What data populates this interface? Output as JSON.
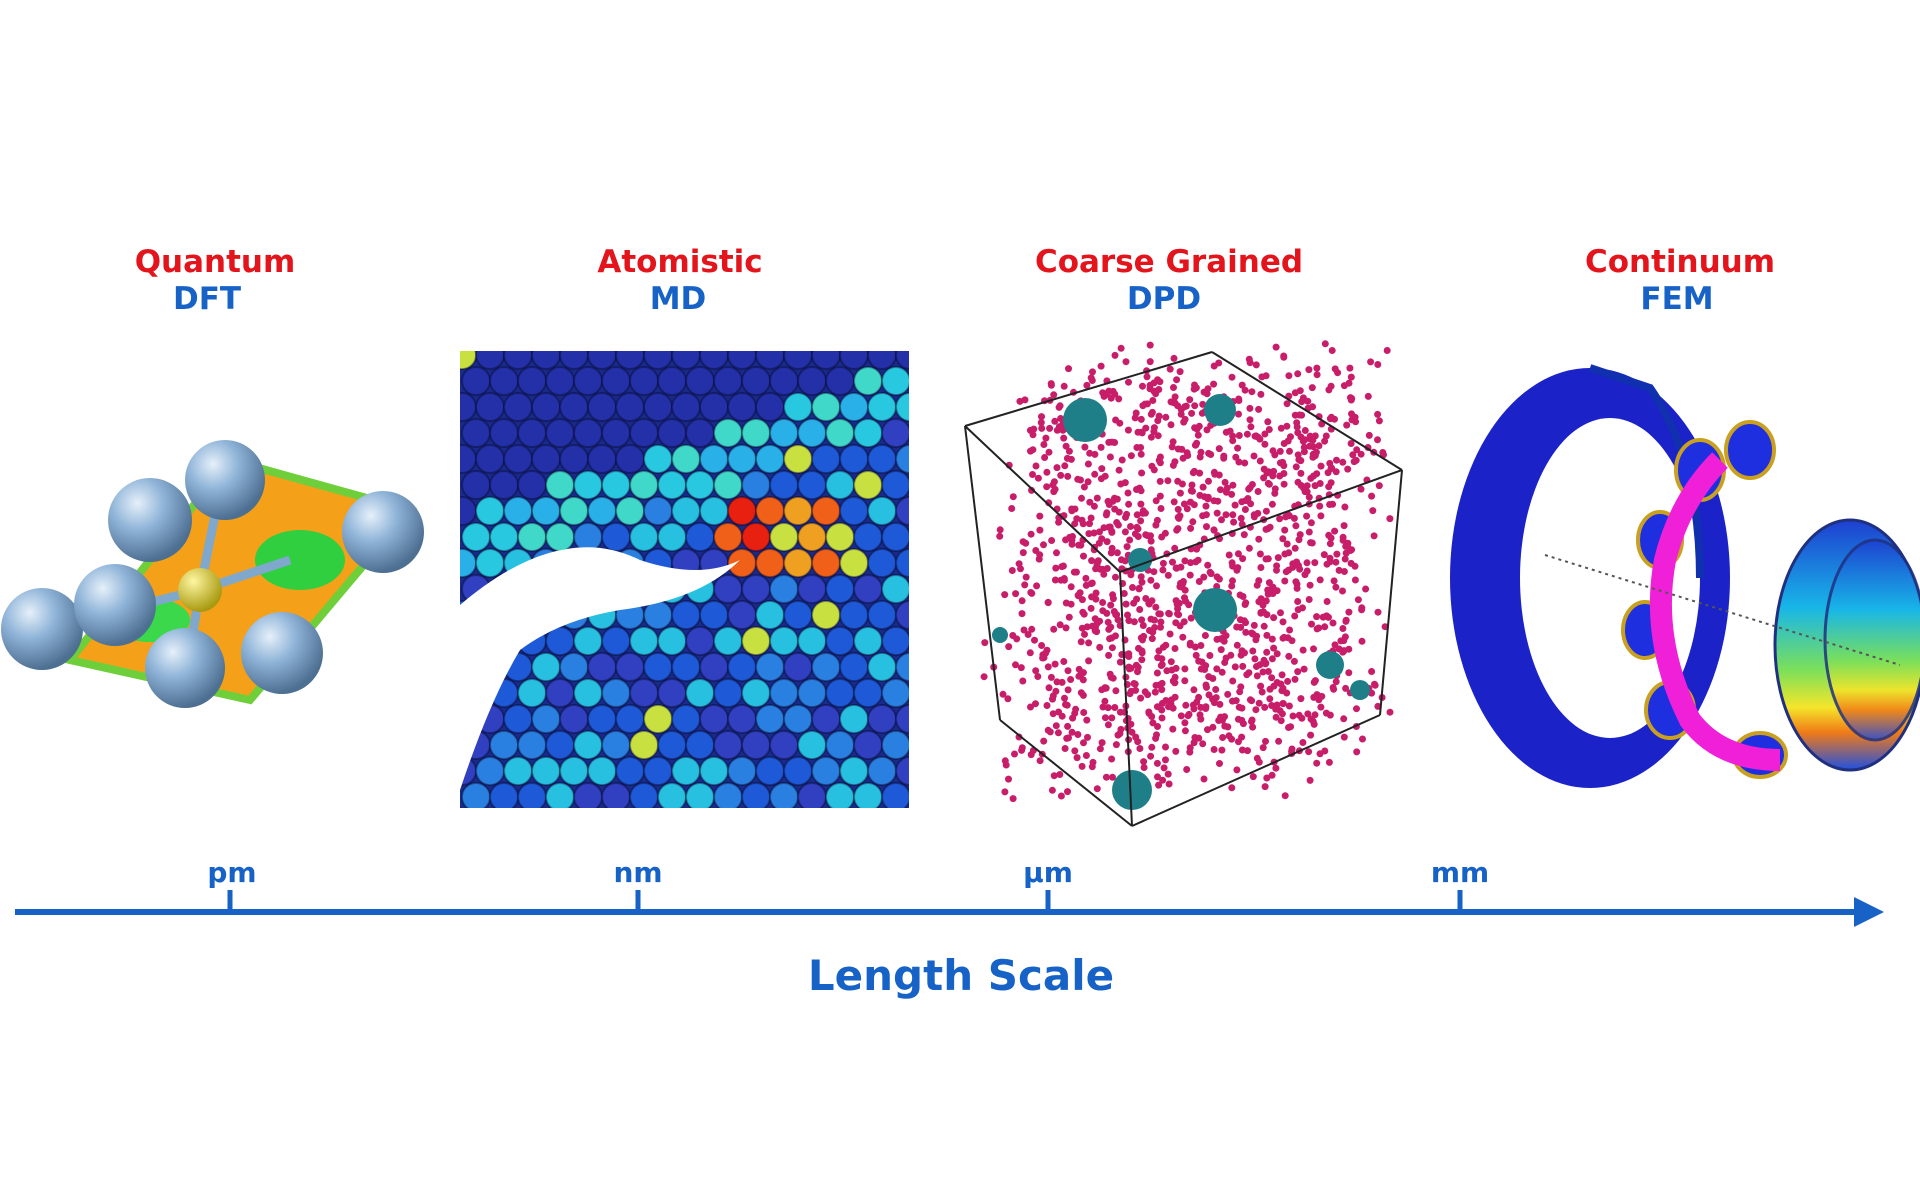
{
  "panels": [
    {
      "title": "Quantum",
      "method": "DFT"
    },
    {
      "title": "Atomistic",
      "method": "MD"
    },
    {
      "title": "Coarse Grained",
      "method": "DPD"
    },
    {
      "title": "Continuum",
      "method": "FEM"
    }
  ],
  "scale": {
    "ticks": [
      "pm",
      "nm",
      "µm",
      "mm"
    ],
    "label": "Length Scale"
  }
}
